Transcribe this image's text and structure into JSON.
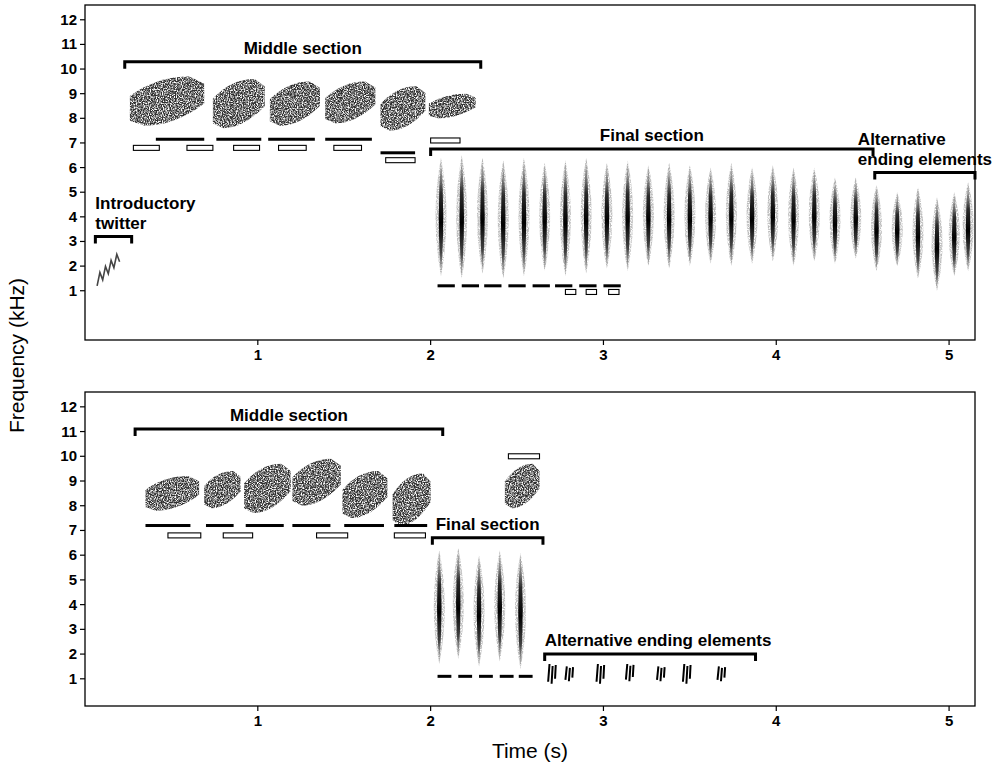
{
  "chart_data": [
    {
      "type": "spectrogram",
      "y_label": "Frequency (kHz)",
      "xlim": [
        0,
        5.15
      ],
      "ylim": [
        -1,
        12.6
      ],
      "xticks": [
        1,
        2,
        3,
        4,
        5
      ],
      "yticks": [
        1,
        2,
        3,
        4,
        5,
        6,
        7,
        8,
        9,
        10,
        11,
        12
      ],
      "annotations": [
        {
          "text": "Introductory twitter",
          "start": 0.06,
          "end": 0.27,
          "freq": 3.2
        },
        {
          "text": "Middle section",
          "start": 0.23,
          "end": 2.29,
          "freq": 10.3
        },
        {
          "text": "Final section",
          "start": 2.0,
          "end": 4.56,
          "freq": 6.75
        },
        {
          "text": "Alternative ending elements",
          "start": 4.57,
          "end": 5.15,
          "freq": 5.8
        }
      ],
      "twitters": [
        {
          "start": 0.07,
          "end": 0.2,
          "low": 1.2,
          "high": 2.6
        }
      ],
      "sweeps": [
        {
          "start": 0.26,
          "end": 0.69,
          "low": 7.7,
          "high": 9.7
        },
        {
          "start": 0.74,
          "end": 1.04,
          "low": 7.6,
          "high": 9.6
        },
        {
          "start": 1.07,
          "end": 1.36,
          "low": 7.7,
          "high": 9.5
        },
        {
          "start": 1.39,
          "end": 1.68,
          "low": 7.8,
          "high": 9.5
        },
        {
          "start": 1.71,
          "end": 1.97,
          "low": 7.5,
          "high": 9.3
        },
        {
          "start": 1.99,
          "end": 2.26,
          "low": 8.0,
          "high": 9.0
        }
      ],
      "pulses": [
        {
          "t": 2.06,
          "low": 1.6,
          "high": 6.4
        },
        {
          "t": 2.18,
          "low": 1.5,
          "high": 6.5
        },
        {
          "t": 2.3,
          "low": 1.7,
          "high": 6.4
        },
        {
          "t": 2.42,
          "low": 1.5,
          "high": 6.3
        },
        {
          "t": 2.54,
          "low": 1.6,
          "high": 6.4
        },
        {
          "t": 2.66,
          "low": 1.8,
          "high": 6.2
        },
        {
          "t": 2.78,
          "low": 1.6,
          "high": 6.3
        },
        {
          "t": 2.9,
          "low": 1.7,
          "high": 6.4
        },
        {
          "t": 3.02,
          "low": 1.9,
          "high": 6.2
        },
        {
          "t": 3.14,
          "low": 1.8,
          "high": 6.3
        },
        {
          "t": 3.26,
          "low": 2.0,
          "high": 6.1
        },
        {
          "t": 3.38,
          "low": 1.9,
          "high": 6.2
        },
        {
          "t": 3.5,
          "low": 2.0,
          "high": 6.1
        },
        {
          "t": 3.62,
          "low": 2.1,
          "high": 6.0
        },
        {
          "t": 3.74,
          "low": 2.0,
          "high": 6.2
        },
        {
          "t": 3.86,
          "low": 2.1,
          "high": 6.0
        },
        {
          "t": 3.98,
          "low": 2.2,
          "high": 6.1
        },
        {
          "t": 4.1,
          "low": 2.0,
          "high": 6.0
        },
        {
          "t": 4.22,
          "low": 2.2,
          "high": 6.0
        },
        {
          "t": 4.34,
          "low": 2.1,
          "high": 5.6
        },
        {
          "t": 4.46,
          "low": 2.3,
          "high": 5.6
        },
        {
          "t": 4.58,
          "low": 1.8,
          "high": 5.3
        },
        {
          "t": 4.7,
          "low": 2.0,
          "high": 5.0
        },
        {
          "t": 4.82,
          "low": 1.5,
          "high": 5.2
        },
        {
          "t": 4.93,
          "low": 1.0,
          "high": 4.8
        },
        {
          "t": 5.03,
          "low": 1.6,
          "high": 5.0
        },
        {
          "t": 5.11,
          "low": 1.8,
          "high": 5.4
        }
      ],
      "clicks": [],
      "element_marks": [
        {
          "marker": "open",
          "start": 0.28,
          "end": 0.43,
          "freq": 6.8
        },
        {
          "marker": "filled",
          "start": 0.41,
          "end": 0.69,
          "freq": 7.15
        },
        {
          "marker": "open",
          "start": 0.59,
          "end": 0.74,
          "freq": 6.8
        },
        {
          "marker": "filled",
          "start": 0.76,
          "end": 1.02,
          "freq": 7.15
        },
        {
          "marker": "open",
          "start": 0.86,
          "end": 1.01,
          "freq": 6.8
        },
        {
          "marker": "filled",
          "start": 1.06,
          "end": 1.33,
          "freq": 7.15
        },
        {
          "marker": "open",
          "start": 1.12,
          "end": 1.28,
          "freq": 6.8
        },
        {
          "marker": "filled",
          "start": 1.39,
          "end": 1.66,
          "freq": 7.15
        },
        {
          "marker": "open",
          "start": 1.44,
          "end": 1.6,
          "freq": 6.8
        },
        {
          "marker": "filled",
          "start": 1.71,
          "end": 1.91,
          "freq": 6.6
        },
        {
          "marker": "open",
          "start": 1.74,
          "end": 1.91,
          "freq": 6.3
        },
        {
          "marker": "open",
          "start": 2.0,
          "end": 2.17,
          "freq": 7.1
        },
        {
          "marker": "filled",
          "start": 2.04,
          "end": 2.14,
          "freq": 1.2
        },
        {
          "marker": "filled",
          "start": 2.18,
          "end": 2.28,
          "freq": 1.2
        },
        {
          "marker": "filled",
          "start": 2.31,
          "end": 2.41,
          "freq": 1.2
        },
        {
          "marker": "filled",
          "start": 2.45,
          "end": 2.55,
          "freq": 1.2
        },
        {
          "marker": "filled",
          "start": 2.59,
          "end": 2.69,
          "freq": 1.2
        },
        {
          "marker": "filled",
          "start": 2.72,
          "end": 2.82,
          "freq": 1.2
        },
        {
          "marker": "filled",
          "start": 2.86,
          "end": 2.96,
          "freq": 1.2
        },
        {
          "marker": "filled",
          "start": 3.0,
          "end": 3.1,
          "freq": 1.2
        },
        {
          "marker": "open",
          "start": 2.78,
          "end": 2.84,
          "freq": 0.95
        },
        {
          "marker": "open",
          "start": 2.9,
          "end": 2.96,
          "freq": 0.95
        },
        {
          "marker": "open",
          "start": 3.03,
          "end": 3.09,
          "freq": 0.95
        }
      ]
    },
    {
      "type": "spectrogram",
      "x_label": "Time (s)",
      "xlim": [
        0,
        5.15
      ],
      "ylim": [
        -0.1,
        12.6
      ],
      "xticks": [
        1,
        2,
        3,
        4,
        5
      ],
      "yticks": [
        1,
        2,
        3,
        4,
        5,
        6,
        7,
        8,
        9,
        10,
        11,
        12
      ],
      "annotations": [
        {
          "text": "Middle section",
          "start": 0.29,
          "end": 2.07,
          "freq": 11.1
        },
        {
          "text": "Final section",
          "start": 2.01,
          "end": 2.65,
          "freq": 6.7
        },
        {
          "text": "Alternative ending elements",
          "start": 2.66,
          "end": 3.88,
          "freq": 2.0
        }
      ],
      "twitters": [],
      "sweeps": [
        {
          "start": 0.35,
          "end": 0.66,
          "low": 7.8,
          "high": 9.2
        },
        {
          "start": 0.69,
          "end": 0.9,
          "low": 7.9,
          "high": 9.4
        },
        {
          "start": 0.92,
          "end": 1.19,
          "low": 7.7,
          "high": 9.7
        },
        {
          "start": 1.2,
          "end": 1.48,
          "low": 8.0,
          "high": 9.9
        },
        {
          "start": 1.49,
          "end": 1.75,
          "low": 7.5,
          "high": 9.4
        },
        {
          "start": 1.78,
          "end": 2.0,
          "low": 7.2,
          "high": 9.3
        },
        {
          "start": 2.43,
          "end": 2.63,
          "low": 7.9,
          "high": 9.7
        }
      ],
      "pulses": [
        {
          "t": 2.05,
          "low": 1.6,
          "high": 6.2
        },
        {
          "t": 2.16,
          "low": 1.8,
          "high": 6.3
        },
        {
          "t": 2.28,
          "low": 1.5,
          "high": 6.0
        },
        {
          "t": 2.4,
          "low": 1.7,
          "high": 6.2
        },
        {
          "t": 2.52,
          "low": 1.4,
          "high": 6.1
        }
      ],
      "clicks": [
        {
          "t": 2.7,
          "low": 0.8,
          "high": 1.6
        },
        {
          "t": 2.8,
          "low": 0.9,
          "high": 1.5
        },
        {
          "t": 2.98,
          "low": 0.8,
          "high": 1.6
        },
        {
          "t": 3.15,
          "low": 0.9,
          "high": 1.6
        },
        {
          "t": 3.33,
          "low": 0.9,
          "high": 1.5
        },
        {
          "t": 3.48,
          "low": 0.8,
          "high": 1.6
        },
        {
          "t": 3.68,
          "low": 0.9,
          "high": 1.5
        }
      ],
      "element_marks": [
        {
          "marker": "filled",
          "start": 0.35,
          "end": 0.61,
          "freq": 7.2
        },
        {
          "marker": "open",
          "start": 0.48,
          "end": 0.67,
          "freq": 6.8
        },
        {
          "marker": "filled",
          "start": 0.7,
          "end": 0.86,
          "freq": 7.2
        },
        {
          "marker": "open",
          "start": 0.8,
          "end": 0.97,
          "freq": 6.8
        },
        {
          "marker": "filled",
          "start": 0.93,
          "end": 1.15,
          "freq": 7.2
        },
        {
          "marker": "filled",
          "start": 1.2,
          "end": 1.42,
          "freq": 7.2
        },
        {
          "marker": "open",
          "start": 1.34,
          "end": 1.52,
          "freq": 6.8
        },
        {
          "marker": "filled",
          "start": 1.5,
          "end": 1.73,
          "freq": 7.2
        },
        {
          "marker": "filled",
          "start": 1.79,
          "end": 1.98,
          "freq": 7.2
        },
        {
          "marker": "open",
          "start": 1.79,
          "end": 1.97,
          "freq": 6.8
        },
        {
          "marker": "open",
          "start": 2.45,
          "end": 2.63,
          "freq": 10.0
        },
        {
          "marker": "filled",
          "start": 2.04,
          "end": 2.12,
          "freq": 1.1
        },
        {
          "marker": "filled",
          "start": 2.16,
          "end": 2.24,
          "freq": 1.1
        },
        {
          "marker": "filled",
          "start": 2.28,
          "end": 2.36,
          "freq": 1.1
        },
        {
          "marker": "filled",
          "start": 2.4,
          "end": 2.48,
          "freq": 1.1
        },
        {
          "marker": "filled",
          "start": 2.51,
          "end": 2.59,
          "freq": 1.1
        }
      ]
    }
  ]
}
